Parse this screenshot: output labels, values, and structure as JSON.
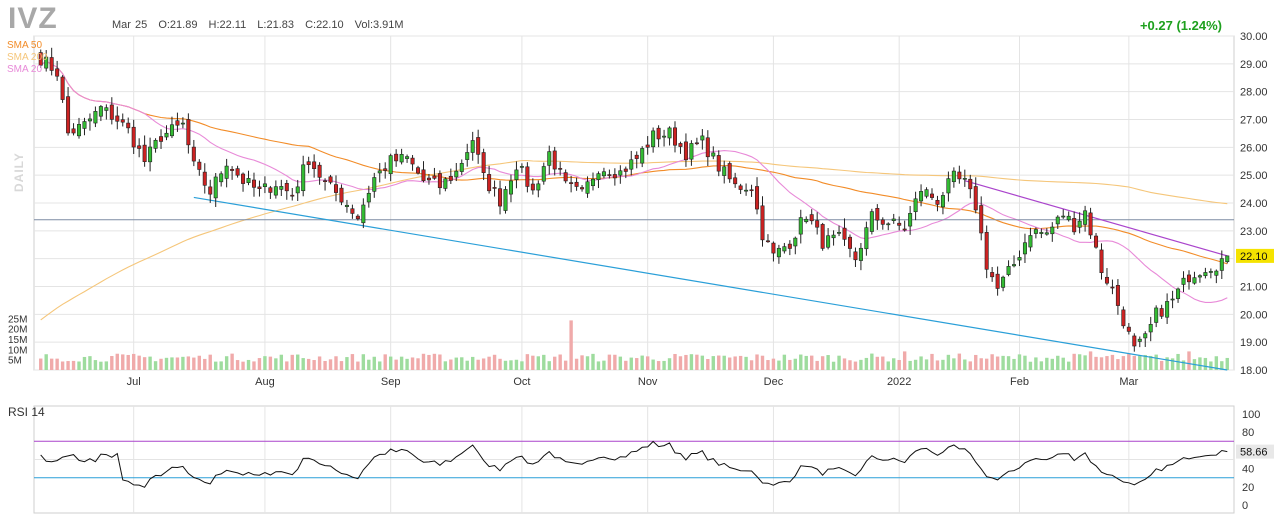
{
  "header": {
    "ticker": "IVZ",
    "date": "Mar 25",
    "open": "O:21.89",
    "high": "H:22.11",
    "low": "L:21.83",
    "close": "C:22.10",
    "volume": "Vol:3.91M",
    "change": "+0.27 (1.24%)",
    "watermark": "DAILY"
  },
  "sma_labels": [
    {
      "text": "SMA 50",
      "color": "#f28c28"
    },
    {
      "text": "SMA 200",
      "color": "#f5c67a"
    },
    {
      "text": "SMA 20",
      "color": "#e88ad8"
    }
  ],
  "rsi_title": "RSI 14",
  "colors": {
    "up": "#33bb33",
    "down": "#cc2222",
    "up_vol": "#9edc9e",
    "down_vol": "#f0aaaa",
    "grid": "#e4e4e4",
    "trend_lower": "#2a9fd8",
    "trend_upper": "#aa44cc",
    "hline": "#7d8ba3",
    "rsi_line": "#111111",
    "rsi_upper": "#aa44cc",
    "rsi_lower": "#2a9fd8"
  },
  "chart_data": [
    {
      "type": "candlestick",
      "y_range": [
        18.0,
        30.0
      ],
      "y_ticks": [
        "18.00",
        "19.00",
        "20.00",
        "21.00",
        "22.00",
        "23.00",
        "24.00",
        "25.00",
        "26.00",
        "27.00",
        "28.00",
        "29.00",
        "30.00"
      ],
      "x_labels": [
        {
          "label": "Jul",
          "bar": 17
        },
        {
          "label": "Aug",
          "bar": 41
        },
        {
          "label": "Sep",
          "bar": 64
        },
        {
          "label": "Oct",
          "bar": 88
        },
        {
          "label": "Nov",
          "bar": 111
        },
        {
          "label": "Dec",
          "bar": 134
        },
        {
          "label": "2022",
          "bar": 157
        },
        {
          "label": "Feb",
          "bar": 179
        },
        {
          "label": "Mar",
          "bar": 199
        }
      ],
      "last_price": "22.10",
      "horizontal_line": 23.4,
      "trendlines": [
        {
          "name": "lower",
          "from": [
            28,
            24.2
          ],
          "to": [
            217,
            18.0
          ]
        },
        {
          "name": "upper",
          "from": [
            169,
            24.8
          ],
          "to": [
            217,
            22.1
          ]
        }
      ],
      "volume_ticks": [
        "25M",
        "20M",
        "15M",
        "10M",
        "5M"
      ],
      "volume_max": 30,
      "anchors": [
        [
          0,
          29.2
        ],
        [
          3,
          28.7
        ],
        [
          5,
          26.5
        ],
        [
          8,
          26.8
        ],
        [
          11,
          27.4
        ],
        [
          14,
          27.0
        ],
        [
          16,
          26.6
        ],
        [
          19,
          25.5
        ],
        [
          22,
          26.4
        ],
        [
          26,
          26.8
        ],
        [
          28,
          25.3
        ],
        [
          31,
          24.4
        ],
        [
          34,
          25.5
        ],
        [
          37,
          24.8
        ],
        [
          40,
          24.4
        ],
        [
          43,
          24.7
        ],
        [
          46,
          24.3
        ],
        [
          49,
          25.6
        ],
        [
          52,
          24.7
        ],
        [
          55,
          24.2
        ],
        [
          58,
          23.5
        ],
        [
          61,
          24.9
        ],
        [
          64,
          25.5
        ],
        [
          67,
          25.6
        ],
        [
          70,
          24.8
        ],
        [
          73,
          24.6
        ],
        [
          76,
          25.1
        ],
        [
          79,
          26.3
        ],
        [
          81,
          24.9
        ],
        [
          84,
          24.1
        ],
        [
          87,
          25.4
        ],
        [
          90,
          24.4
        ],
        [
          93,
          25.8
        ],
        [
          96,
          24.6
        ],
        [
          99,
          24.3
        ],
        [
          102,
          25.3
        ],
        [
          106,
          25.1
        ],
        [
          109,
          25.6
        ],
        [
          112,
          26.4
        ],
        [
          115,
          26.5
        ],
        [
          118,
          25.8
        ],
        [
          121,
          26.2
        ],
        [
          124,
          25.3
        ],
        [
          127,
          24.6
        ],
        [
          130,
          24.6
        ],
        [
          132,
          22.9
        ],
        [
          134,
          22.1
        ],
        [
          137,
          22.6
        ],
        [
          140,
          23.6
        ],
        [
          143,
          22.6
        ],
        [
          146,
          22.7
        ],
        [
          149,
          22.0
        ],
        [
          152,
          23.5
        ],
        [
          155,
          23.3
        ],
        [
          158,
          23.1
        ],
        [
          161,
          24.5
        ],
        [
          164,
          24.1
        ],
        [
          167,
          24.9
        ],
        [
          169,
          24.7
        ],
        [
          171,
          23.9
        ],
        [
          173,
          21.8
        ],
        [
          175,
          20.9
        ],
        [
          178,
          21.8
        ],
        [
          181,
          23.0
        ],
        [
          184,
          22.9
        ],
        [
          187,
          23.6
        ],
        [
          189,
          23.2
        ],
        [
          191,
          23.7
        ],
        [
          194,
          21.6
        ],
        [
          196,
          20.9
        ],
        [
          198,
          19.8
        ],
        [
          200,
          18.7
        ],
        [
          202,
          19.1
        ],
        [
          204,
          20.0
        ],
        [
          207,
          20.5
        ],
        [
          210,
          21.4
        ],
        [
          213,
          21.7
        ],
        [
          215,
          21.8
        ],
        [
          217,
          22.1
        ]
      ],
      "rsi_range": [
        0,
        100
      ],
      "rsi_ticks": [
        "0",
        "20",
        "40",
        "60",
        "80",
        "100"
      ],
      "rsi_bands": [
        30,
        70
      ],
      "rsi_last": "58.66",
      "series": [
        {
          "name": "SMA 50"
        },
        {
          "name": "SMA 200"
        },
        {
          "name": "SMA 20"
        },
        {
          "name": "RSI 14"
        }
      ]
    }
  ]
}
